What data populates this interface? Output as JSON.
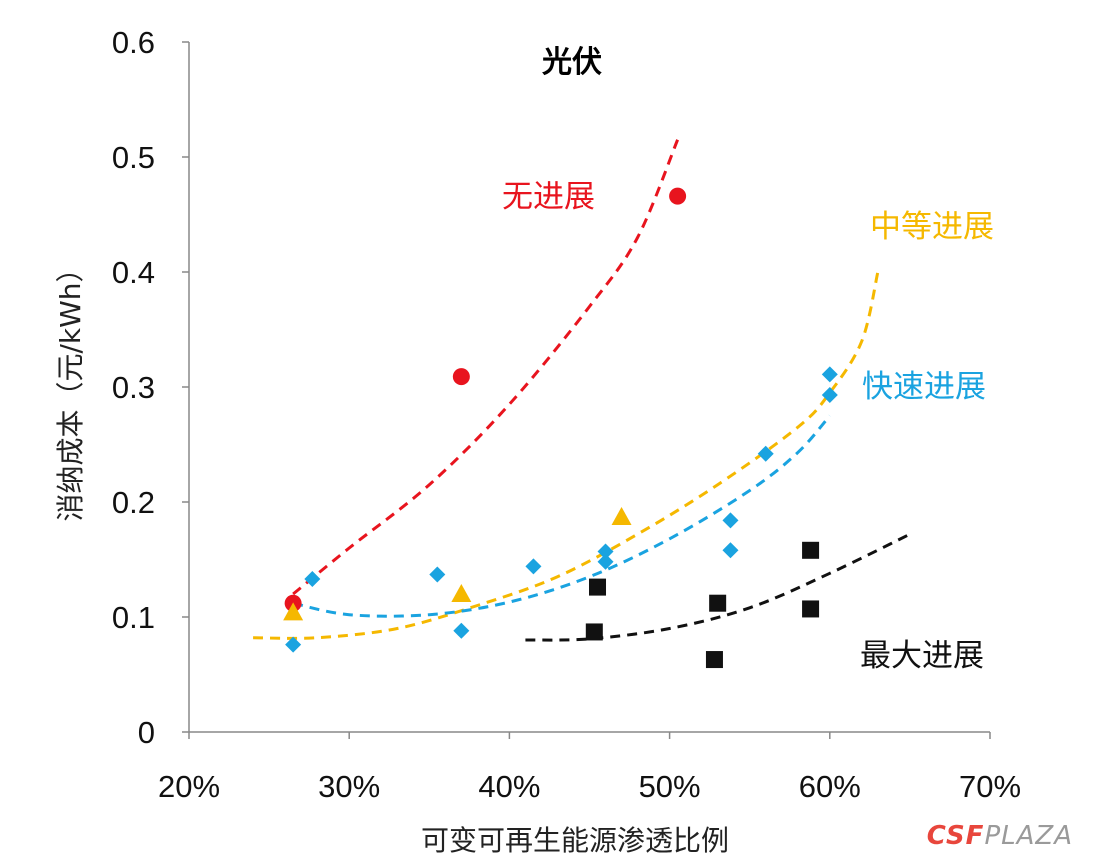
{
  "chart_data": {
    "type": "scatter",
    "title": "光伏",
    "xlabel": "可变可再生能源渗透比例",
    "ylabel": "消纳成本（元/kWh）",
    "xlim": [
      0.2,
      0.7
    ],
    "ylim": [
      0,
      0.6
    ],
    "x_ticks": [
      0.2,
      0.3,
      0.4,
      0.5,
      0.6,
      0.7
    ],
    "x_tick_labels": [
      "20%",
      "30%",
      "40%",
      "50%",
      "60%",
      "70%"
    ],
    "y_ticks": [
      0,
      0.1,
      0.2,
      0.3,
      0.4,
      0.5,
      0.6
    ],
    "y_tick_labels": [
      "0",
      "0.1",
      "0.2",
      "0.3",
      "0.4",
      "0.5",
      "0.6"
    ],
    "series": [
      {
        "name": "无进展",
        "color": "#e8141e",
        "marker": "circle",
        "points": [
          [
            0.265,
            0.112
          ],
          [
            0.37,
            0.309
          ],
          [
            0.505,
            0.466
          ]
        ],
        "trend": [
          [
            0.265,
            0.12
          ],
          [
            0.3,
            0.16
          ],
          [
            0.35,
            0.215
          ],
          [
            0.4,
            0.285
          ],
          [
            0.45,
            0.37
          ],
          [
            0.48,
            0.43
          ],
          [
            0.505,
            0.515
          ]
        ]
      },
      {
        "name": "中等进展",
        "color": "#f5b800",
        "marker": "triangle",
        "points": [
          [
            0.265,
            0.104
          ],
          [
            0.37,
            0.12
          ],
          [
            0.47,
            0.187
          ]
        ],
        "trend": [
          [
            0.24,
            0.082
          ],
          [
            0.28,
            0.082
          ],
          [
            0.33,
            0.09
          ],
          [
            0.38,
            0.11
          ],
          [
            0.43,
            0.135
          ],
          [
            0.48,
            0.172
          ],
          [
            0.53,
            0.215
          ],
          [
            0.58,
            0.265
          ],
          [
            0.6,
            0.295
          ],
          [
            0.62,
            0.34
          ],
          [
            0.63,
            0.4
          ]
        ]
      },
      {
        "name": "快速进展",
        "color": "#1aa3e0",
        "marker": "diamond",
        "points": [
          [
            0.265,
            0.076
          ],
          [
            0.277,
            0.133
          ],
          [
            0.355,
            0.137
          ],
          [
            0.37,
            0.088
          ],
          [
            0.415,
            0.144
          ],
          [
            0.46,
            0.148
          ],
          [
            0.46,
            0.157
          ],
          [
            0.538,
            0.184
          ],
          [
            0.538,
            0.158
          ],
          [
            0.56,
            0.242
          ],
          [
            0.6,
            0.293
          ],
          [
            0.6,
            0.311
          ]
        ],
        "trend": [
          [
            0.265,
            0.112
          ],
          [
            0.3,
            0.102
          ],
          [
            0.35,
            0.102
          ],
          [
            0.4,
            0.113
          ],
          [
            0.45,
            0.135
          ],
          [
            0.5,
            0.168
          ],
          [
            0.55,
            0.21
          ],
          [
            0.58,
            0.243
          ],
          [
            0.6,
            0.275
          ]
        ]
      },
      {
        "name": "最大进展",
        "color": "#111111",
        "marker": "square",
        "points": [
          [
            0.453,
            0.087
          ],
          [
            0.455,
            0.126
          ],
          [
            0.528,
            0.063
          ],
          [
            0.53,
            0.112
          ],
          [
            0.588,
            0.107
          ],
          [
            0.588,
            0.158
          ]
        ],
        "trend": [
          [
            0.41,
            0.08
          ],
          [
            0.45,
            0.081
          ],
          [
            0.5,
            0.09
          ],
          [
            0.55,
            0.108
          ],
          [
            0.6,
            0.138
          ],
          [
            0.65,
            0.172
          ]
        ]
      }
    ]
  },
  "watermark": {
    "brand": "CSF",
    "suffix": "PLAZA"
  }
}
